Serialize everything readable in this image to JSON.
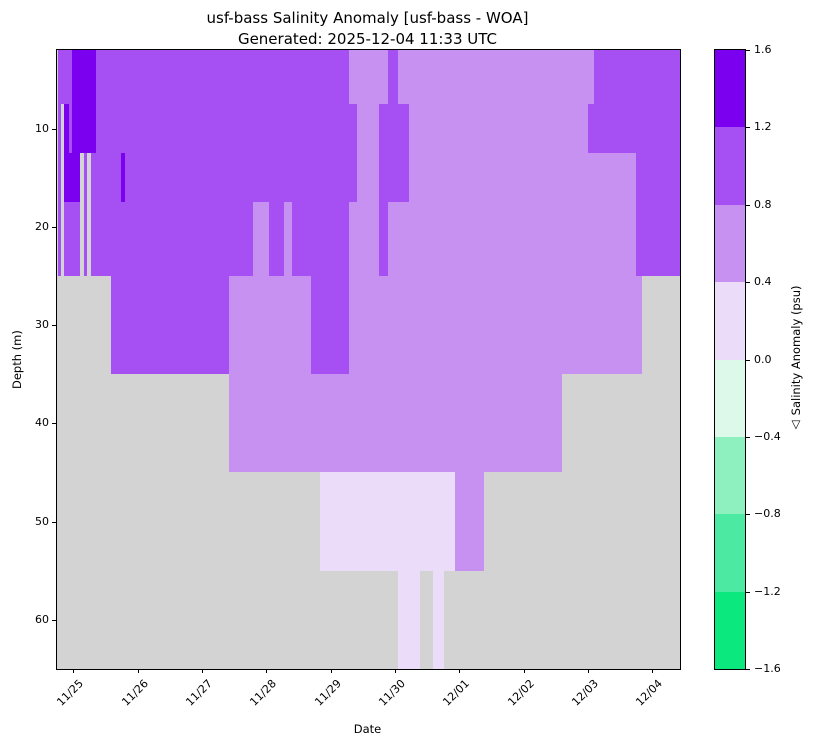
{
  "title": {
    "line1": "usf-bass Salinity Anomaly [usf-bass - WOA]",
    "line2": "Generated: 2025-12-04 11:33 UTC"
  },
  "axes": {
    "xlabel": "Date",
    "ylabel": "Depth (m)",
    "no_data_color": "#d3d3d3",
    "x_ticks": [
      {
        "day": 0,
        "label": "11/25"
      },
      {
        "day": 1,
        "label": "11/26"
      },
      {
        "day": 2,
        "label": "11/27"
      },
      {
        "day": 3,
        "label": "11/28"
      },
      {
        "day": 4,
        "label": "11/29"
      },
      {
        "day": 5,
        "label": "11/30"
      },
      {
        "day": 6,
        "label": "12/01"
      },
      {
        "day": 7,
        "label": "12/02"
      },
      {
        "day": 8,
        "label": "12/03"
      },
      {
        "day": 9,
        "label": "12/04"
      }
    ],
    "y_ticks": [
      10,
      20,
      30,
      40,
      50,
      60
    ]
  },
  "chart_data": {
    "type": "heatmap",
    "title": "usf-bass Salinity Anomaly [usf-bass - WOA]",
    "subtitle": "Generated: 2025-12-04 11:33 UTC",
    "xlabel": "Date",
    "ylabel": "Depth (m)",
    "x_tick_labels": [
      "11/25",
      "11/26",
      "11/27",
      "11/28",
      "11/29",
      "11/30",
      "12/01",
      "12/02",
      "12/03",
      "12/04"
    ],
    "x_range_days": [
      -0.253,
      9.432
    ],
    "x_day_zero": "11/25",
    "depth_range": [
      2,
      65
    ],
    "depth_bin_edges": [
      2,
      7.5,
      12.5,
      17.5,
      25,
      35,
      45,
      55,
      65
    ],
    "grid": false,
    "background_no_data": "#d3d3d3",
    "colorbar": {
      "label": "△ Salinity Anomaly (psu)",
      "tick_labels": [
        "1.6",
        "1.2",
        "0.8",
        "0.4",
        "0.0",
        "−0.4",
        "−0.8",
        "−1.2",
        "−1.6"
      ],
      "tick_values": [
        1.6,
        1.2,
        0.8,
        0.4,
        0.0,
        -0.4,
        -0.8,
        -1.2,
        -1.6
      ],
      "bands": [
        {
          "range": [
            1.2,
            1.6
          ],
          "color": "#7b00f0"
        },
        {
          "range": [
            0.8,
            1.2
          ],
          "color": "#a64ff2"
        },
        {
          "range": [
            0.4,
            0.8
          ],
          "color": "#c791f2"
        },
        {
          "range": [
            0.0,
            0.4
          ],
          "color": "#ebdcf9"
        },
        {
          "range": [
            -0.4,
            0.0
          ],
          "color": "#dcf9ea"
        },
        {
          "range": [
            -0.8,
            -0.4
          ],
          "color": "#8ff0bf"
        },
        {
          "range": [
            -1.2,
            -0.8
          ],
          "color": "#4be9a1"
        },
        {
          "range": [
            -1.6,
            -1.2
          ],
          "color": "#0ae87e"
        }
      ]
    },
    "columns": [
      {
        "t": [
          -0.238,
          -0.191
        ],
        "segments": [
          [
            2,
            25,
            1
          ]
        ]
      },
      {
        "t": [
          -0.191,
          -0.145
        ],
        "segments": [
          [
            2,
            7.5,
            1
          ]
        ]
      },
      {
        "t": [
          -0.145,
          -0.067
        ],
        "segments": [
          [
            2,
            7.5,
            1
          ],
          [
            7.5,
            17.5,
            0
          ],
          [
            17.5,
            25,
            1
          ]
        ]
      },
      {
        "t": [
          -0.067,
          -0.02
        ],
        "segments": [
          [
            2,
            12.5,
            1
          ],
          [
            12.5,
            17.5,
            0
          ],
          [
            17.5,
            25,
            1
          ]
        ]
      },
      {
        "t": [
          -0.02,
          0.104
        ],
        "segments": [
          [
            2,
            17.5,
            0
          ],
          [
            17.5,
            25,
            1
          ]
        ]
      },
      {
        "t": [
          0.104,
          0.166
        ],
        "segments": [
          [
            2,
            12.5,
            0
          ]
        ]
      },
      {
        "t": [
          0.166,
          0.213
        ],
        "segments": [
          [
            2,
            12.5,
            0
          ],
          [
            12.5,
            25,
            1
          ]
        ]
      },
      {
        "t": [
          0.213,
          0.275
        ],
        "segments": [
          [
            2,
            12.5,
            0
          ]
        ]
      },
      {
        "t": [
          0.275,
          0.353
        ],
        "segments": [
          [
            2,
            12.5,
            0
          ],
          [
            12.5,
            25,
            1
          ]
        ]
      },
      {
        "t": [
          0.353,
          0.586
        ],
        "segments": [
          [
            2,
            25,
            1
          ]
        ]
      },
      {
        "t": [
          0.586,
          0.742
        ],
        "segments": [
          [
            2,
            35,
            1
          ]
        ]
      },
      {
        "t": [
          0.742,
          0.804
        ],
        "segments": [
          [
            2,
            12.5,
            1
          ],
          [
            12.5,
            17.5,
            0
          ],
          [
            17.5,
            35,
            1
          ]
        ]
      },
      {
        "t": [
          0.804,
          2.421
        ],
        "segments": [
          [
            2,
            35,
            1
          ]
        ]
      },
      {
        "t": [
          2.421,
          2.789
        ],
        "segments": [
          [
            2,
            25,
            1
          ],
          [
            25,
            45,
            2
          ]
        ]
      },
      {
        "t": [
          2.789,
          3.038
        ],
        "segments": [
          [
            2,
            17.5,
            1
          ],
          [
            17.5,
            45,
            2
          ]
        ]
      },
      {
        "t": [
          3.038,
          3.276
        ],
        "segments": [
          [
            2,
            25,
            1
          ],
          [
            25,
            45,
            2
          ]
        ]
      },
      {
        "t": [
          3.276,
          3.4
        ],
        "segments": [
          [
            2,
            17.5,
            1
          ],
          [
            17.5,
            45,
            2
          ]
        ]
      },
      {
        "t": [
          3.4,
          3.695
        ],
        "segments": [
          [
            2,
            25,
            1
          ],
          [
            25,
            45,
            2
          ]
        ]
      },
      {
        "t": [
          3.695,
          3.835
        ],
        "segments": [
          [
            2,
            35,
            1
          ],
          [
            35,
            45,
            2
          ]
        ]
      },
      {
        "t": [
          3.835,
          4.286
        ],
        "segments": [
          [
            2,
            35,
            1
          ],
          [
            35,
            45,
            2
          ],
          [
            45,
            55,
            3
          ]
        ]
      },
      {
        "t": [
          4.286,
          4.41
        ],
        "segments": [
          [
            2,
            7.5,
            2
          ],
          [
            7.5,
            17.5,
            1
          ],
          [
            17.5,
            45,
            2
          ],
          [
            45,
            55,
            3
          ]
        ]
      },
      {
        "t": [
          4.41,
          4.752
        ],
        "segments": [
          [
            2,
            45,
            2
          ],
          [
            45,
            55,
            3
          ]
        ]
      },
      {
        "t": [
          4.752,
          4.892
        ],
        "segments": [
          [
            2,
            7.5,
            2
          ],
          [
            7.5,
            25,
            1
          ],
          [
            25,
            45,
            2
          ],
          [
            45,
            55,
            3
          ]
        ]
      },
      {
        "t": [
          4.892,
          5.048
        ],
        "segments": [
          [
            2,
            17.5,
            1
          ],
          [
            17.5,
            45,
            2
          ],
          [
            45,
            55,
            3
          ]
        ]
      },
      {
        "t": [
          5.048,
          5.219
        ],
        "segments": [
          [
            2,
            7.5,
            2
          ],
          [
            7.5,
            17.5,
            1
          ],
          [
            17.5,
            45,
            2
          ],
          [
            45,
            65,
            3
          ]
        ]
      },
      {
        "t": [
          5.219,
          5.39
        ],
        "segments": [
          [
            2,
            45,
            2
          ],
          [
            45,
            65,
            3
          ]
        ]
      },
      {
        "t": [
          5.39,
          5.592
        ],
        "segments": [
          [
            2,
            45,
            2
          ],
          [
            45,
            55,
            3
          ]
        ]
      },
      {
        "t": [
          5.592,
          5.763
        ],
        "segments": [
          [
            2,
            45,
            2
          ],
          [
            45,
            65,
            3
          ]
        ]
      },
      {
        "t": [
          5.763,
          5.934
        ],
        "segments": [
          [
            2,
            45,
            2
          ],
          [
            45,
            55,
            3
          ]
        ]
      },
      {
        "t": [
          5.934,
          6.385
        ],
        "segments": [
          [
            2,
            55,
            2
          ]
        ]
      },
      {
        "t": [
          6.385,
          7.597
        ],
        "segments": [
          [
            2,
            45,
            2
          ]
        ]
      },
      {
        "t": [
          7.597,
          8.001
        ],
        "segments": [
          [
            2,
            35,
            2
          ]
        ]
      },
      {
        "t": [
          8.001,
          8.095
        ],
        "segments": [
          [
            2,
            7.5,
            2
          ],
          [
            7.5,
            12.5,
            1
          ],
          [
            12.5,
            35,
            2
          ]
        ]
      },
      {
        "t": [
          8.095,
          8.748
        ],
        "segments": [
          [
            2,
            12.5,
            1
          ],
          [
            12.5,
            35,
            2
          ]
        ]
      },
      {
        "t": [
          8.748,
          8.841
        ],
        "segments": [
          [
            2,
            25,
            1
          ],
          [
            25,
            35,
            2
          ]
        ]
      },
      {
        "t": [
          8.841,
          9.432
        ],
        "segments": [
          [
            2,
            25,
            1
          ]
        ]
      }
    ]
  }
}
